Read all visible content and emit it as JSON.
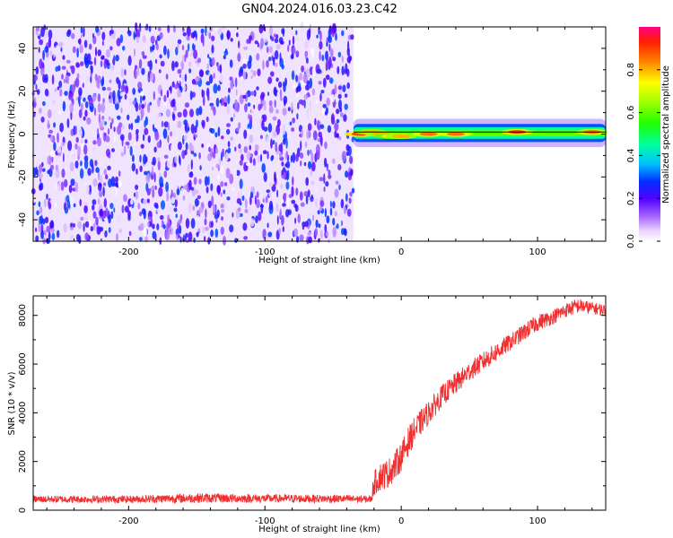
{
  "title": "GN04.2024.016.03.23.C42",
  "chart_data": [
    {
      "type": "heatmap",
      "xlabel": "Height of straight line (km)",
      "ylabel": "Frequency (Hz)",
      "xlim": [
        -270,
        150
      ],
      "ylim": [
        -50,
        50
      ],
      "x_ticks": [
        -200,
        -100,
        0,
        100
      ],
      "y_ticks": [
        -40,
        -20,
        0,
        20,
        40
      ],
      "noise_region": {
        "x": [
          -270,
          -35
        ],
        "amplitude_range": [
          0.0,
          0.3
        ]
      },
      "signal_band": {
        "x": [
          -35,
          150
        ],
        "center_frequency": 0.5,
        "halfwidth": 3,
        "peaks": [
          {
            "x": -30,
            "freq": 0,
            "amp": 0.9
          },
          {
            "x": -22,
            "freq": 1,
            "amp": 0.8
          },
          {
            "x": -15,
            "freq": 0,
            "amp": 0.8
          },
          {
            "x": -8,
            "freq": -1,
            "amp": 0.75
          },
          {
            "x": 0,
            "freq": -1,
            "amp": 0.8
          },
          {
            "x": 20,
            "freq": 0,
            "amp": 0.85
          },
          {
            "x": 40,
            "freq": 0,
            "amp": 0.85
          },
          {
            "x": 85,
            "freq": 1,
            "amp": 0.9
          },
          {
            "x": 140,
            "freq": 1,
            "amp": 0.85
          }
        ]
      },
      "colorbar": {
        "label": "Normalized spectral amplitude",
        "ticks": [
          0.0,
          0.2,
          0.4,
          0.6,
          0.8
        ],
        "range": [
          0,
          1
        ],
        "colormap": "rainbow"
      }
    },
    {
      "type": "line",
      "xlabel": "Height of straight line (km)",
      "ylabel": "SNR (10 * v/v)",
      "xlim": [
        -270,
        150
      ],
      "ylim": [
        0,
        8800
      ],
      "x_ticks": [
        -200,
        -100,
        0,
        100
      ],
      "y_ticks": [
        0,
        2000,
        4000,
        6000,
        8000
      ],
      "series": [
        {
          "color": "#f03030",
          "x": [
            -270,
            -200,
            -150,
            -100,
            -50,
            -22,
            -20,
            -15,
            -10,
            -5,
            0,
            5,
            10,
            20,
            30,
            40,
            50,
            60,
            70,
            80,
            90,
            100,
            110,
            120,
            130,
            140,
            150
          ],
          "y": [
            450,
            450,
            500,
            480,
            470,
            450,
            1100,
            1400,
            1500,
            1800,
            2200,
            2800,
            3300,
            4000,
            4700,
            5200,
            5700,
            6100,
            6500,
            6900,
            7300,
            7700,
            7900,
            8200,
            8400,
            8300,
            8200
          ],
          "noise_amplitude": [
            150,
            150,
            200,
            170,
            170,
            150,
            500,
            600,
            600,
            600,
            600,
            600,
            550,
            500,
            450,
            450,
            400,
            400,
            400,
            350,
            350,
            350,
            300,
            300,
            300,
            250,
            250
          ]
        }
      ]
    }
  ]
}
